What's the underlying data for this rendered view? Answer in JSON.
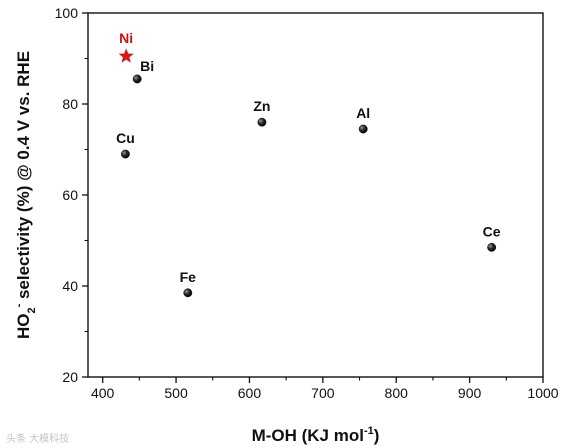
{
  "chart_data": {
    "type": "scatter",
    "xlabel": "M-OH (KJ mol",
    "xlabel_sup": "-1",
    "xlabel_end": ")",
    "ylabel_main": "HO",
    "ylabel_sub": "2",
    "ylabel_sup": "-",
    "ylabel_rest": " selectivity (%) @ 0.4 V vs. RHE",
    "xlim": [
      380,
      1000
    ],
    "ylim": [
      20,
      100
    ],
    "xticks": [
      400,
      500,
      600,
      700,
      800,
      900,
      1000
    ],
    "yticks": [
      20,
      40,
      60,
      80,
      100
    ],
    "grid": false,
    "points": [
      {
        "label": "Ni",
        "x": 432,
        "y": 90.5,
        "marker": "star",
        "color": "#d81818",
        "label_pos": "top"
      },
      {
        "label": "Bi",
        "x": 447,
        "y": 85.5,
        "marker": "sphere",
        "color": "#111111",
        "label_pos": "top-right"
      },
      {
        "label": "Cu",
        "x": 431,
        "y": 69,
        "marker": "sphere",
        "color": "#111111",
        "label_pos": "top"
      },
      {
        "label": "Zn",
        "x": 617,
        "y": 76,
        "marker": "sphere",
        "color": "#111111",
        "label_pos": "top"
      },
      {
        "label": "Al",
        "x": 755,
        "y": 74.5,
        "marker": "sphere",
        "color": "#111111",
        "label_pos": "top"
      },
      {
        "label": "Fe",
        "x": 516,
        "y": 38.5,
        "marker": "sphere",
        "color": "#111111",
        "label_pos": "top"
      },
      {
        "label": "Ce",
        "x": 930,
        "y": 48.5,
        "marker": "sphere",
        "color": "#111111",
        "label_pos": "top"
      }
    ]
  },
  "watermark": "头条 大模科技"
}
